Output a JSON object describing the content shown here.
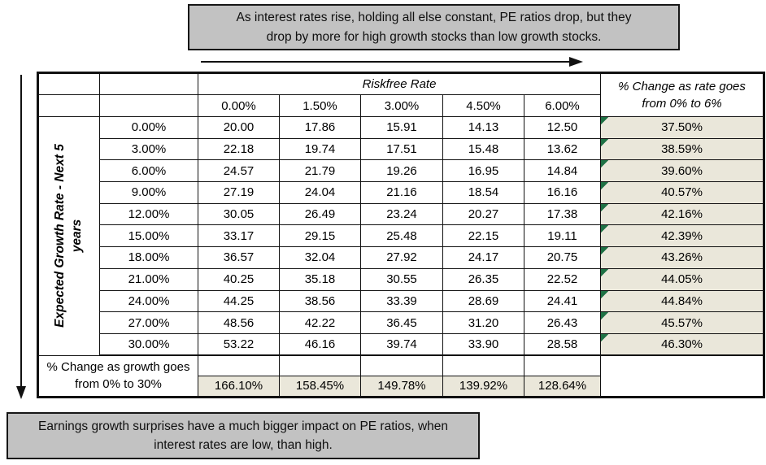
{
  "colors": {
    "note_background": "#c2c2c2",
    "cell_highlight_beige": "#eae7da",
    "error_flag_green": "#1e7145",
    "border_black": "#111111"
  },
  "top_note": {
    "line1": "As interest rates rise, holding all else constant, PE ratios drop, but they",
    "line2": "drop by more for high growth stocks than low growth stocks."
  },
  "bottom_note": {
    "line1": "Earnings growth surprises have a much bigger impact on PE ratios, when",
    "line2": "interest rates are low, than high."
  },
  "chart_data": {
    "type": "table",
    "column_group_label": "Riskfree Rate",
    "rate_columns": [
      "0.00%",
      "1.50%",
      "3.00%",
      "4.50%",
      "6.00%"
    ],
    "row_axis_label": {
      "line1": "Expected Growth Rate - Next 5",
      "line2": "years"
    },
    "right_column_header": {
      "line1": "% Change as rate goes",
      "line2": "from 0% to  6%"
    },
    "rows": [
      {
        "growth": "0.00%",
        "pe": [
          "20.00",
          "17.86",
          "15.91",
          "14.13",
          "12.50"
        ],
        "pct_change": "37.50%"
      },
      {
        "growth": "3.00%",
        "pe": [
          "22.18",
          "19.74",
          "17.51",
          "15.48",
          "13.62"
        ],
        "pct_change": "38.59%"
      },
      {
        "growth": "6.00%",
        "pe": [
          "24.57",
          "21.79",
          "19.26",
          "16.95",
          "14.84"
        ],
        "pct_change": "39.60%"
      },
      {
        "growth": "9.00%",
        "pe": [
          "27.19",
          "24.04",
          "21.16",
          "18.54",
          "16.16"
        ],
        "pct_change": "40.57%"
      },
      {
        "growth": "12.00%",
        "pe": [
          "30.05",
          "26.49",
          "23.24",
          "20.27",
          "17.38"
        ],
        "pct_change": "42.16%"
      },
      {
        "growth": "15.00%",
        "pe": [
          "33.17",
          "29.15",
          "25.48",
          "22.15",
          "19.11"
        ],
        "pct_change": "42.39%"
      },
      {
        "growth": "18.00%",
        "pe": [
          "36.57",
          "32.04",
          "27.92",
          "24.17",
          "20.75"
        ],
        "pct_change": "43.26%"
      },
      {
        "growth": "21.00%",
        "pe": [
          "40.25",
          "35.18",
          "30.55",
          "26.35",
          "22.52"
        ],
        "pct_change": "44.05%"
      },
      {
        "growth": "24.00%",
        "pe": [
          "44.25",
          "38.56",
          "33.39",
          "28.69",
          "24.41"
        ],
        "pct_change": "44.84%"
      },
      {
        "growth": "27.00%",
        "pe": [
          "48.56",
          "42.22",
          "36.45",
          "31.20",
          "26.43"
        ],
        "pct_change": "45.57%"
      },
      {
        "growth": "30.00%",
        "pe": [
          "53.22",
          "46.16",
          "39.74",
          "33.90",
          "28.58"
        ],
        "pct_change": "46.30%"
      }
    ],
    "footer": {
      "label": {
        "line1": "% Change as growth goes",
        "line2": "from 0% to 30%"
      },
      "values": [
        "166.10%",
        "158.45%",
        "149.78%",
        "139.92%",
        "128.64%"
      ]
    }
  }
}
